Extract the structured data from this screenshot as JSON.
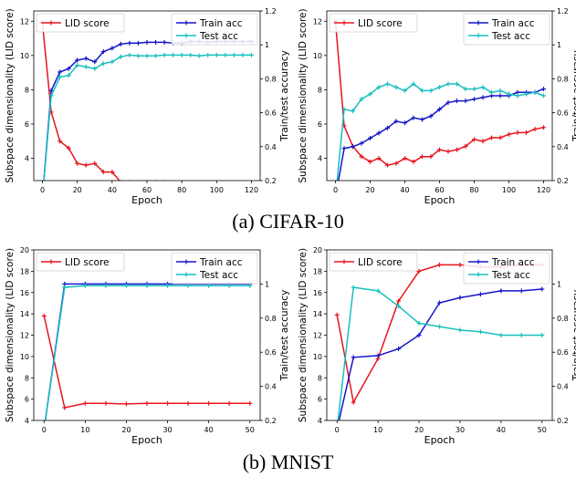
{
  "captions": {
    "a": "(a) CIFAR-10",
    "b": "(b) MNIST"
  },
  "colors": {
    "lid": "#e8141c",
    "train": "#1515c8",
    "test": "#19bfbf"
  },
  "chart_data": [
    {
      "type": "line",
      "dataset": "CIFAR-10",
      "xlabel": "Epoch",
      "ylabel": "Subspace dimensionality (LID score)",
      "ylabel_right": "Train/test accuracy",
      "xlim": [
        -5,
        125
      ],
      "ylim": [
        2.7,
        12.6
      ],
      "ylim_right": [
        0.2,
        1.2
      ],
      "xticks": [
        0,
        20,
        40,
        60,
        80,
        100,
        120
      ],
      "yticks": [
        4,
        6,
        8,
        10,
        12
      ],
      "yticks_right": [
        0.2,
        0.4,
        0.6,
        0.8,
        1.0,
        1.2
      ],
      "legend_left": "upper-left",
      "legend_right": "upper-right",
      "series": [
        {
          "name": "LID score",
          "axis": "left",
          "color": "#e8141c",
          "x": [
            0,
            5,
            10,
            15,
            20,
            25,
            30,
            35,
            40,
            45,
            50,
            55,
            60,
            65,
            70,
            75,
            80,
            85,
            90,
            95,
            100,
            105,
            110,
            115,
            120
          ],
          "y": [
            11.9,
            6.7,
            5.0,
            4.6,
            3.7,
            3.6,
            3.7,
            3.2,
            3.2,
            2.6,
            2.6,
            2.6,
            2.6,
            2.6,
            2.6,
            2.55,
            2.55,
            2.5,
            2.5,
            2.45,
            2.45,
            2.5,
            2.45,
            2.5,
            2.5
          ]
        },
        {
          "name": "Train acc",
          "axis": "right",
          "color": "#1515c8",
          "x": [
            0,
            5,
            10,
            15,
            20,
            25,
            30,
            35,
            40,
            45,
            50,
            55,
            60,
            65,
            70,
            75,
            80,
            85,
            90,
            95,
            100,
            105,
            110,
            115,
            120
          ],
          "y": [
            0.1,
            0.73,
            0.84,
            0.86,
            0.91,
            0.92,
            0.9,
            0.96,
            0.98,
            1.005,
            1.01,
            1.01,
            1.015,
            1.015,
            1.015,
            1.01,
            1.01,
            1.02,
            1.02,
            1.015,
            1.02,
            1.02,
            1.02,
            1.02,
            1.02
          ]
        },
        {
          "name": "Test acc",
          "axis": "right",
          "color": "#19bfbf",
          "x": [
            0,
            5,
            10,
            15,
            20,
            25,
            30,
            35,
            40,
            45,
            50,
            55,
            60,
            65,
            70,
            75,
            80,
            85,
            90,
            95,
            100,
            105,
            110,
            115,
            120
          ],
          "y": [
            0.1,
            0.7,
            0.81,
            0.82,
            0.88,
            0.87,
            0.86,
            0.89,
            0.9,
            0.93,
            0.94,
            0.935,
            0.935,
            0.935,
            0.94,
            0.94,
            0.94,
            0.94,
            0.935,
            0.94,
            0.94,
            0.94,
            0.94,
            0.94,
            0.94
          ]
        }
      ]
    },
    {
      "type": "line",
      "dataset": "CIFAR-10",
      "xlabel": "Epoch",
      "ylabel": "Subspace dimensionality (LID score)",
      "ylabel_right": "Train/test accuracy",
      "xlim": [
        -5,
        125
      ],
      "ylim": [
        2.7,
        12.6
      ],
      "ylim_right": [
        0.2,
        1.2
      ],
      "xticks": [
        0,
        20,
        40,
        60,
        80,
        100,
        120
      ],
      "yticks": [
        4,
        6,
        8,
        10,
        12
      ],
      "yticks_right": [
        0.2,
        0.4,
        0.6,
        0.8,
        1.0,
        1.2
      ],
      "legend_left": "upper-left",
      "legend_right": "upper-right",
      "series": [
        {
          "name": "LID score",
          "axis": "left",
          "color": "#e8141c",
          "x": [
            0,
            5,
            10,
            15,
            20,
            25,
            30,
            35,
            40,
            45,
            50,
            55,
            60,
            65,
            70,
            75,
            80,
            85,
            90,
            95,
            100,
            105,
            110,
            115,
            120
          ],
          "y": [
            12.0,
            5.9,
            4.7,
            4.1,
            3.8,
            4.0,
            3.6,
            3.7,
            4.0,
            3.8,
            4.1,
            4.1,
            4.5,
            4.4,
            4.5,
            4.7,
            5.1,
            5.0,
            5.2,
            5.2,
            5.4,
            5.5,
            5.5,
            5.7,
            5.8
          ]
        },
        {
          "name": "Train acc",
          "axis": "right",
          "color": "#1515c8",
          "x": [
            0,
            5,
            10,
            15,
            20,
            25,
            30,
            35,
            40,
            45,
            50,
            55,
            60,
            65,
            70,
            75,
            80,
            85,
            90,
            95,
            100,
            105,
            110,
            115,
            120
          ],
          "y": [
            0.1,
            0.39,
            0.4,
            0.42,
            0.45,
            0.48,
            0.51,
            0.55,
            0.54,
            0.57,
            0.56,
            0.58,
            0.62,
            0.66,
            0.67,
            0.67,
            0.68,
            0.69,
            0.7,
            0.7,
            0.7,
            0.72,
            0.72,
            0.72,
            0.74
          ]
        },
        {
          "name": "Test acc",
          "axis": "right",
          "color": "#19bfbf",
          "x": [
            0,
            5,
            10,
            15,
            20,
            25,
            30,
            35,
            40,
            45,
            50,
            55,
            60,
            65,
            70,
            75,
            80,
            85,
            90,
            95,
            100,
            105,
            110,
            115,
            120
          ],
          "y": [
            0.1,
            0.62,
            0.61,
            0.68,
            0.71,
            0.75,
            0.77,
            0.75,
            0.73,
            0.77,
            0.73,
            0.73,
            0.75,
            0.77,
            0.77,
            0.74,
            0.74,
            0.75,
            0.72,
            0.73,
            0.71,
            0.7,
            0.71,
            0.72,
            0.7
          ]
        }
      ]
    },
    {
      "type": "line",
      "dataset": "MNIST",
      "xlabel": "Epoch",
      "ylabel": "Subspace dimensionality (LID score)",
      "ylabel_right": "Train/test accuracy",
      "xlim": [
        -2.5,
        52.5
      ],
      "ylim": [
        4,
        20
      ],
      "ylim_right": [
        0.2,
        1.2
      ],
      "xticks": [
        0,
        10,
        20,
        30,
        40,
        50
      ],
      "yticks": [
        4,
        6,
        8,
        10,
        12,
        14,
        16,
        18,
        20
      ],
      "yticks_right": [
        0.2,
        0.4,
        0.6,
        0.8,
        1.0
      ],
      "legend_left": "upper-left",
      "legend_right": "upper-right",
      "series": [
        {
          "name": "LID score",
          "axis": "left",
          "color": "#e8141c",
          "x": [
            0,
            5,
            10,
            15,
            20,
            25,
            30,
            35,
            40,
            45,
            50
          ],
          "y": [
            13.8,
            5.2,
            5.6,
            5.6,
            5.55,
            5.6,
            5.6,
            5.6,
            5.6,
            5.6,
            5.6
          ]
        },
        {
          "name": "Train acc",
          "axis": "right",
          "color": "#1515c8",
          "x": [
            0,
            5,
            10,
            15,
            20,
            25,
            30,
            35,
            40,
            45,
            50
          ],
          "y": [
            0.15,
            1.0,
            1.0,
            1.0,
            1.0,
            1.0,
            1.0,
            1.0,
            1.0,
            1.0,
            1.0
          ]
        },
        {
          "name": "Test acc",
          "axis": "right",
          "color": "#19bfbf",
          "x": [
            0,
            5,
            10,
            15,
            20,
            25,
            30,
            35,
            40,
            45,
            50
          ],
          "y": [
            0.15,
            0.98,
            0.99,
            0.99,
            0.99,
            0.99,
            0.99,
            0.99,
            0.99,
            0.99,
            0.99
          ]
        }
      ]
    },
    {
      "type": "line",
      "dataset": "MNIST",
      "xlabel": "Epoch",
      "ylabel": "Subspace dimensionality (LID score)",
      "ylabel_right": "Train/test accuracy",
      "xlim": [
        -2.5,
        52.5
      ],
      "ylim": [
        4,
        20
      ],
      "ylim_right": [
        0.2,
        1.2
      ],
      "xticks": [
        0,
        10,
        20,
        30,
        40,
        50
      ],
      "yticks": [
        4,
        6,
        8,
        10,
        12,
        14,
        16,
        18,
        20
      ],
      "yticks_right": [
        0.2,
        0.4,
        0.6,
        0.8,
        1.0
      ],
      "legend_left": "upper-left",
      "legend_right": "upper-right",
      "series": [
        {
          "name": "LID score",
          "axis": "left",
          "color": "#e8141c",
          "x": [
            0,
            4,
            10,
            15,
            20,
            25,
            30,
            35,
            40,
            45,
            50
          ],
          "y": [
            13.9,
            5.7,
            9.8,
            15.2,
            18.0,
            18.6,
            18.6,
            18.4,
            18.4,
            18.6,
            18.6
          ]
        },
        {
          "name": "Train acc",
          "axis": "right",
          "color": "#1515c8",
          "x": [
            0,
            4,
            10,
            15,
            20,
            25,
            30,
            35,
            40,
            45,
            50
          ],
          "y": [
            0.15,
            0.57,
            0.58,
            0.62,
            0.7,
            0.89,
            0.92,
            0.94,
            0.96,
            0.96,
            0.97
          ]
        },
        {
          "name": "Test acc",
          "axis": "right",
          "color": "#19bfbf",
          "x": [
            0,
            4,
            10,
            15,
            20,
            25,
            30,
            35,
            40,
            45,
            50
          ],
          "y": [
            0.15,
            0.98,
            0.96,
            0.87,
            0.77,
            0.75,
            0.73,
            0.72,
            0.7,
            0.7,
            0.7
          ]
        }
      ]
    }
  ]
}
